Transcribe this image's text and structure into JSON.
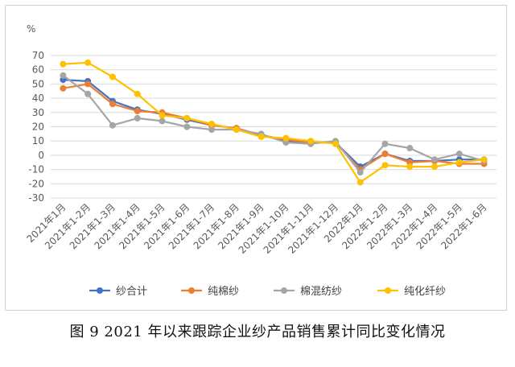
{
  "caption": "图 9   2021 年以来跟踪企业纱产品销售累计同比变化情况",
  "chart_data": {
    "type": "line",
    "ylabel": "%",
    "ylim": [
      -30,
      70
    ],
    "yticks": [
      70,
      60,
      50,
      40,
      30,
      20,
      10,
      0,
      -10,
      -20,
      -30
    ],
    "grid": true,
    "legend_position": "bottom",
    "categories": [
      "2021年1月",
      "2021年1-2月",
      "2021年1-3月",
      "2021年1-4月",
      "2021年1-5月",
      "2021年1-6月",
      "2021年1-7月",
      "2021年1-8月",
      "2021年1-9月",
      "2021年1-10月",
      "2021年1-11月",
      "2021年1-12月",
      "2022年1月",
      "2022年1-2月",
      "2022年1-3月",
      "2022年1-4月",
      "2022年1-5月",
      "2022年1-6月"
    ],
    "series": [
      {
        "name": "纱合计",
        "color": "#4472C4",
        "values": [
          53,
          52,
          38,
          32,
          29,
          25,
          21,
          19,
          14,
          10,
          9,
          9,
          -8,
          1,
          -4,
          -4,
          -3,
          -3
        ]
      },
      {
        "name": "纯棉纱",
        "color": "#ED7D31",
        "values": [
          47,
          50,
          36,
          31,
          30,
          26,
          21,
          19,
          14,
          11,
          9,
          9,
          -10,
          1,
          -5,
          -4,
          -6,
          -6
        ]
      },
      {
        "name": "棉混纺纱",
        "color": "#A5A5A5",
        "values": [
          56,
          43,
          21,
          26,
          24,
          20,
          18,
          18,
          15,
          9,
          8,
          10,
          -12,
          8,
          5,
          -3,
          1,
          -4
        ]
      },
      {
        "name": "纯化纤纱",
        "color": "#FFC000",
        "values": [
          64,
          65,
          55,
          43,
          28,
          26,
          22,
          18,
          13,
          12,
          10,
          8,
          -19,
          -7,
          -8,
          -8,
          -5,
          -3
        ]
      }
    ]
  }
}
